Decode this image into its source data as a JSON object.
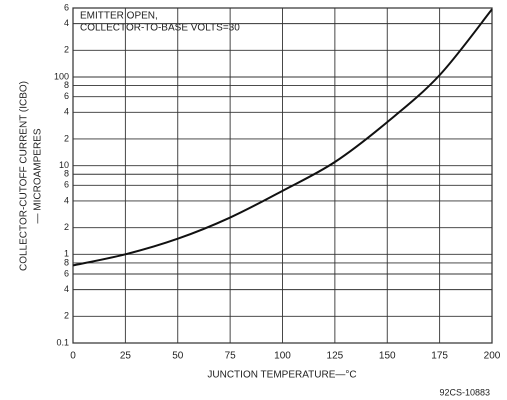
{
  "chart_data": {
    "type": "line",
    "annotation": [
      "EMITTER OPEN,",
      "COLLECTOR-TO-BASE VOLTS=30"
    ],
    "xlabel": "JUNCTION TEMPERATURE—°C",
    "ylabel": [
      "COLLECTOR-CUTOFF CURRENT (ICBO)",
      "— MICROAMPERES"
    ],
    "figure_code": "92CS-10883",
    "x": [
      0,
      25,
      50,
      75,
      100,
      125,
      150,
      175,
      200
    ],
    "series": [
      {
        "name": "ICBO",
        "color": "#111111",
        "values": [
          0.75,
          1.0,
          1.5,
          2.6,
          5.2,
          11,
          31,
          105,
          580
        ]
      }
    ],
    "xlim": [
      0,
      200
    ],
    "xticks": [
      0,
      25,
      50,
      75,
      100,
      125,
      150,
      175,
      200
    ],
    "ylim": [
      0.1,
      600
    ],
    "ylog": true,
    "yticks": [
      0.1,
      {
        "value": 0.2,
        "label": "2"
      },
      {
        "value": 0.4,
        "label": "4"
      },
      {
        "value": 0.6,
        "label": "6"
      },
      {
        "value": 0.8,
        "label": "8"
      },
      1,
      2,
      4,
      6,
      8,
      10,
      {
        "value": 20,
        "label": "2"
      },
      {
        "value": 40,
        "label": "4"
      },
      {
        "value": 60,
        "label": "6"
      },
      {
        "value": 80,
        "label": "8"
      },
      100,
      {
        "value": 200,
        "label": "2"
      },
      {
        "value": 400,
        "label": "4"
      },
      {
        "value": 600,
        "label": "6"
      }
    ],
    "grid": true
  }
}
